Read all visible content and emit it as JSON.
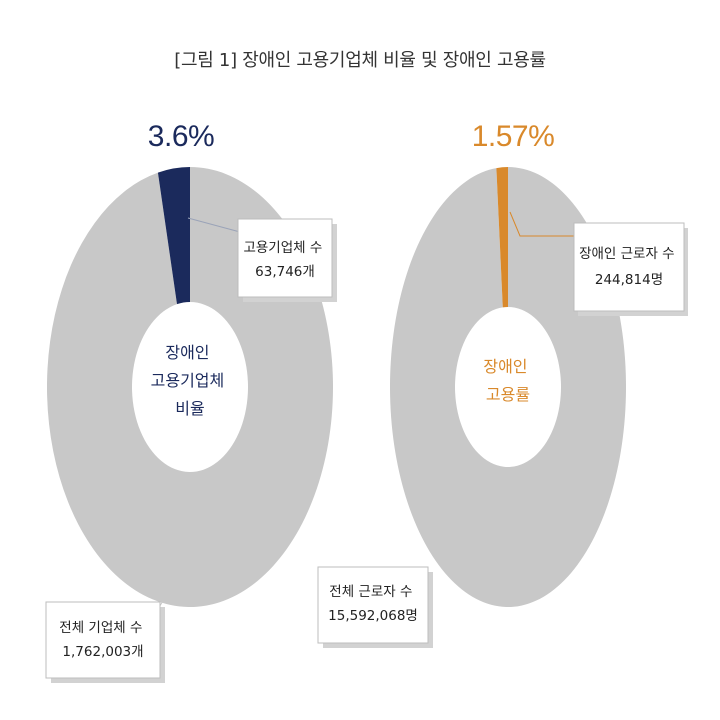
{
  "figure_title": "[그림 1] 장애인 고용기업체 비율 및 장애인 고용률",
  "colors": {
    "remainder": "#c8c8c8",
    "navy": "#1b2a5c",
    "orange": "#d9892b",
    "callout_border": "#bdbdbd",
    "callout_shadow": "#d2d2d2"
  },
  "chart_data": [
    {
      "type": "pie",
      "style": "donut",
      "highlight_percent": "3.6%",
      "center_label": [
        "장애인",
        "고용기업체",
        "비율"
      ],
      "slices": [
        {
          "label_lines": [
            "고용기업체 수",
            "63,746개"
          ],
          "value": 63746,
          "share": 3.6,
          "color": "#1b2a5c"
        },
        {
          "label_lines": [
            "전체 기업체 수",
            "1,762,003개"
          ],
          "value": 1762003,
          "share": 96.4,
          "color": "#c8c8c8"
        }
      ]
    },
    {
      "type": "pie",
      "style": "donut",
      "highlight_percent": "1.57%",
      "center_label": [
        "장애인",
        "고용률"
      ],
      "slices": [
        {
          "label_lines": [
            "장애인 근로자 수",
            "244,814명"
          ],
          "value": 244814,
          "share": 1.57,
          "color": "#d9892b"
        },
        {
          "label_lines": [
            "전체 근로자 수",
            "15,592,068명"
          ],
          "value": 15592068,
          "share": 98.43,
          "color": "#c8c8c8"
        }
      ]
    }
  ]
}
